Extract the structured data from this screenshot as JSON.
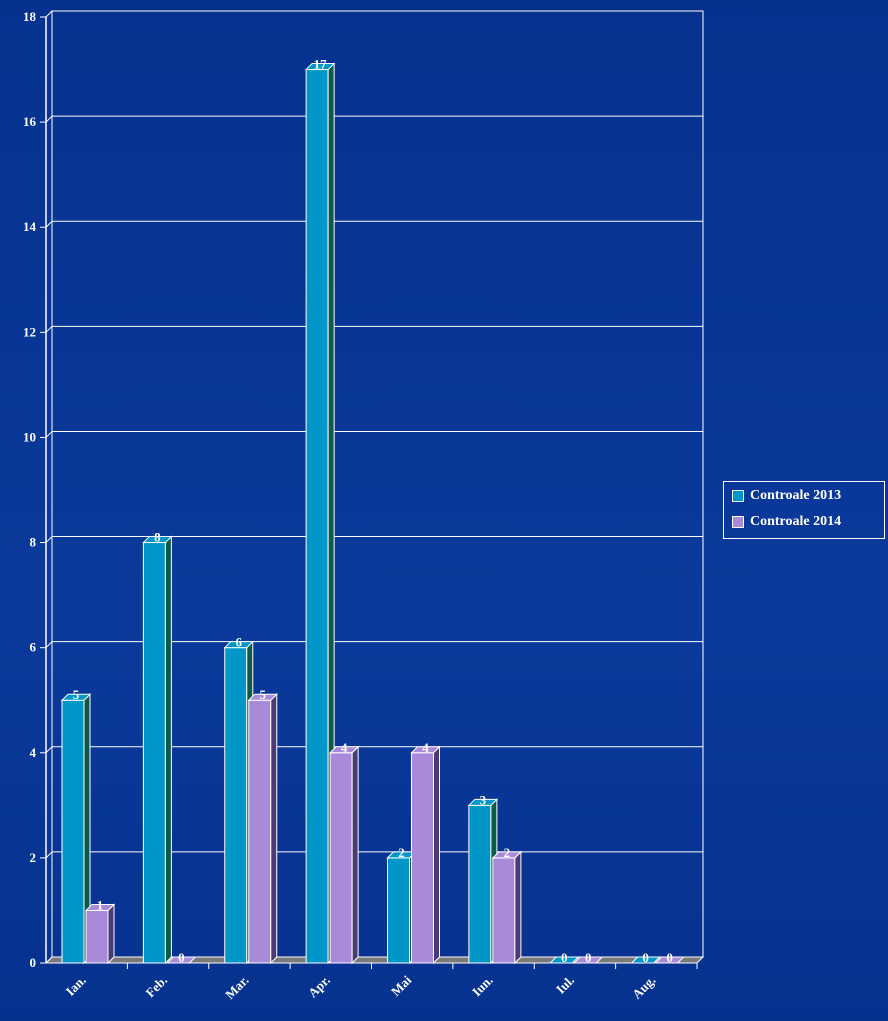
{
  "chart_data": {
    "type": "bar",
    "categories": [
      "Ian.",
      "Feb.",
      "Mar.",
      "Apr.",
      "Mai",
      "Iun.",
      "Iul.",
      "Aug."
    ],
    "series": [
      {
        "name": "Controale 2013",
        "values": [
          5,
          8,
          6,
          17,
          2,
          3,
          0,
          0
        ],
        "color": "#0096c8"
      },
      {
        "name": "Controale 2014",
        "values": [
          1,
          0,
          5,
          4,
          4,
          2,
          0,
          0
        ],
        "color": "#a98ad9"
      }
    ],
    "ylim": [
      0,
      18
    ],
    "yticks": [
      0,
      2,
      4,
      6,
      8,
      10,
      12,
      14,
      16,
      18
    ],
    "grid": true,
    "legend_position": "right",
    "data_labels": true
  },
  "colors": {
    "background": "#0b3a9c",
    "axis": "#ffffff",
    "grid": "#ffffff",
    "text": "#ffffff",
    "side_2013": "#0b5a4a",
    "side_2014": "#4a3a78",
    "floor": "#7a7a7a"
  }
}
